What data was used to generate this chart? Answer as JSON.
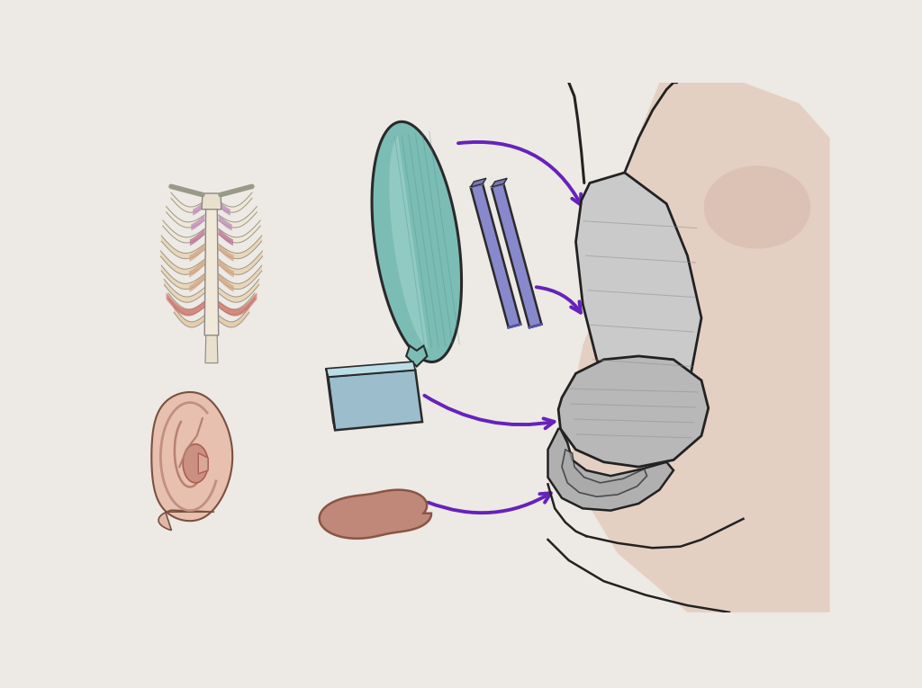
{
  "bg_color": "#ede9e4",
  "outline_color": "#2a2a2a",
  "arrow_color": "#6622BB",
  "rib_cart_color": "#7BBDB5",
  "rib_cart_dark": "#4A9088",
  "rib_cart_light": "#A8D8D2",
  "septal_strip_color": "#8888CC",
  "septal_strip_dark": "#5555AA",
  "septal_strip_light": "#AAAADD",
  "ear_block_color": "#9BBDCC",
  "ear_block_dark": "#6A8FAA",
  "sep_cartilage_color": "#C08878",
  "sep_cartilage_dark": "#8A5545",
  "nose_fill": "#B8B8B8",
  "nose_fill2": "#CACACA",
  "nose_dark": "#888888",
  "nose_outline": "#222222",
  "skin_peach": "#DDBBA8",
  "skin_blush": "#DDB0A0",
  "rib_bone_color": "#EEE0C8",
  "rib_highlight": "#F8F0E0",
  "purple1": "#AA44CC",
  "purple2": "#7733BB"
}
